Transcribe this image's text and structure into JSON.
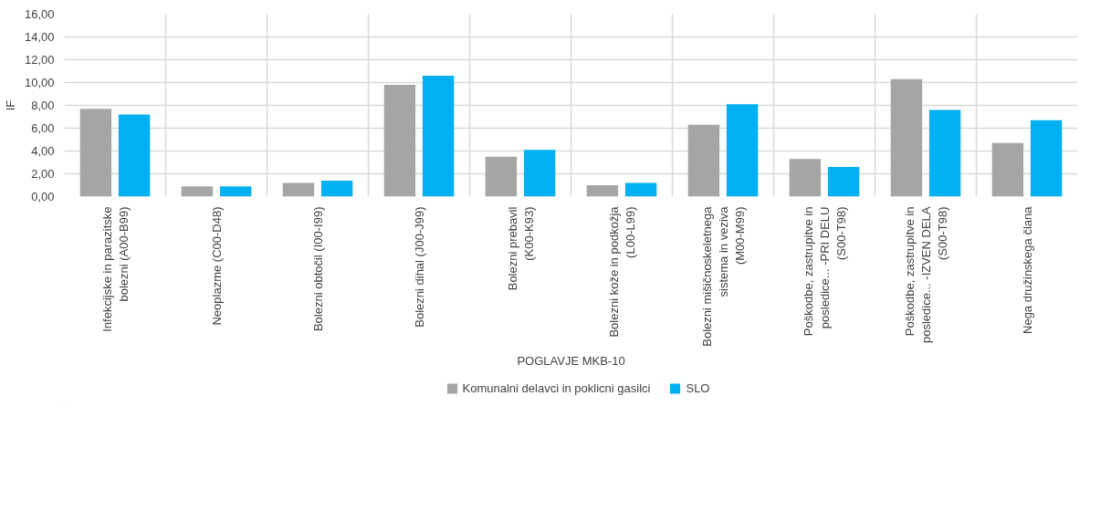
{
  "chart_data": {
    "type": "bar",
    "xlabel": "POGLAVJE MKB-10",
    "ylabel": "IF",
    "categories": [
      "Infekcijske in parazitske bolezni (A00-B99)",
      "Neoplazme (C00-D48)",
      "Bolezni obtočil (I00-I99)",
      "Bolezni dihal (J00-J99)",
      "Bolezni prebavil (K00-K93)",
      "Bolezni kože in podkožja (L00-L99)",
      "Bolezni mišičnoskeletnega sistema in veziva (M00-M99)",
      "Poškodbe, zastrupitve in posledice... -PRI DELU (S00-T98)",
      "Poškodbe, zastrupitve in posledice... -IZVEN DELA (S00-T98)",
      "Nega družinskega člana"
    ],
    "series": [
      {
        "name": "Komunalni delavci in poklicni gasilci",
        "color": "#a5a5a5",
        "values": [
          7.7,
          0.9,
          1.2,
          9.8,
          3.5,
          1.0,
          6.3,
          3.3,
          10.3,
          4.7
        ]
      },
      {
        "name": "SLO",
        "color": "#00b0f0",
        "values": [
          7.2,
          0.9,
          1.4,
          10.6,
          4.1,
          1.2,
          8.1,
          2.6,
          7.6,
          6.7
        ]
      }
    ],
    "ylim": [
      0,
      16
    ],
    "yticks": [
      {
        "value": 0,
        "label": "0,00"
      },
      {
        "value": 2,
        "label": "2,00"
      },
      {
        "value": 4,
        "label": "4,00"
      },
      {
        "value": 6,
        "label": "6,00"
      },
      {
        "value": 8,
        "label": "8,00"
      },
      {
        "value": 10,
        "label": "10,00"
      },
      {
        "value": 12,
        "label": "12,00"
      },
      {
        "value": 14,
        "label": "14,00"
      },
      {
        "value": 16,
        "label": "16,00"
      }
    ],
    "grid": true,
    "legend": "bottom"
  }
}
